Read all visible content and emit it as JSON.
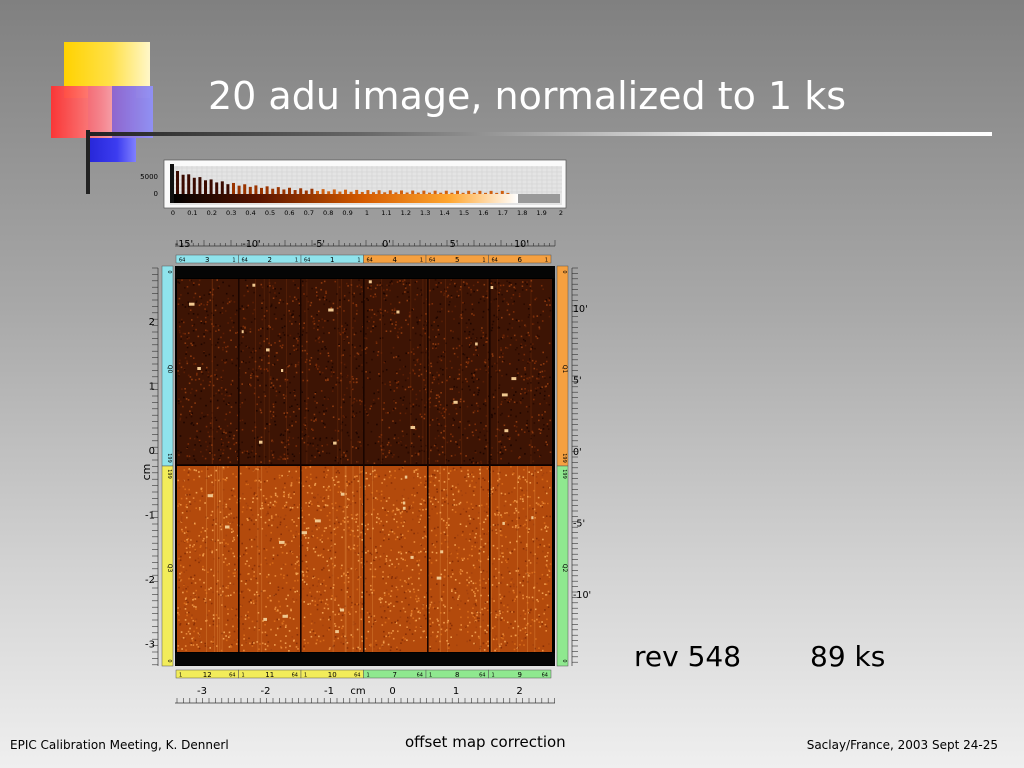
{
  "slide": {
    "title": "20 adu image, normalized to 1 ks",
    "rev_label": "rev 548",
    "exposure_label": "89 ks",
    "footer_left": "EPIC Calibration Meeting, K. Dennerl",
    "footer_center": "offset map correction",
    "footer_right": "Saclay/France, 2003 Sept 24-25"
  },
  "histogram": {
    "y_ticks": [
      "5000",
      "0"
    ],
    "x_ticks": [
      "0",
      "0.1",
      "0.2",
      "0.3",
      "0.4",
      "0.5",
      "0.6",
      "0.7",
      "0.8",
      "0.9",
      "1",
      "1.1",
      "1.2",
      "1.3",
      "1.4",
      "1.5",
      "1.6",
      "1.7",
      "1.8",
      "1.9",
      "2"
    ]
  },
  "image_panel": {
    "top_angle_ticks": [
      "-15'",
      "-10'",
      "-5'",
      "0'",
      "5'",
      "10'"
    ],
    "bottom_cm_ticks": [
      "-3",
      "-2",
      "-1",
      "0",
      "1",
      "2"
    ],
    "bottom_cm_label": "cm",
    "left_cm_ticks": [
      "2",
      "1",
      "0",
      "-1",
      "-2",
      "-3"
    ],
    "left_cm_label": "cm",
    "right_angle_ticks": [
      "10'",
      "5'",
      "0'",
      "-5'",
      "-10'"
    ],
    "top_ccds": [
      {
        "label": "3",
        "left": "64",
        "right": "1",
        "color": "#8fe3ec"
      },
      {
        "label": "2",
        "left": "64",
        "right": "1",
        "color": "#8fe3ec"
      },
      {
        "label": "1",
        "left": "64",
        "right": "1",
        "color": "#8fe3ec"
      },
      {
        "label": "4",
        "left": "64",
        "right": "1",
        "color": "#f5a040"
      },
      {
        "label": "5",
        "left": "64",
        "right": "1",
        "color": "#f5a040"
      },
      {
        "label": "6",
        "left": "64",
        "right": "1",
        "color": "#f5a040"
      }
    ],
    "bottom_ccds": [
      {
        "label": "12",
        "left": "1",
        "right": "64",
        "color": "#f2ec5a"
      },
      {
        "label": "11",
        "left": "1",
        "right": "64",
        "color": "#f2ec5a"
      },
      {
        "label": "10",
        "left": "1",
        "right": "64",
        "color": "#f2ec5a"
      },
      {
        "label": "7",
        "left": "1",
        "right": "64",
        "color": "#8fe88f"
      },
      {
        "label": "8",
        "left": "1",
        "right": "64",
        "color": "#8fe88f"
      },
      {
        "label": "9",
        "left": "1",
        "right": "64",
        "color": "#8fe88f"
      }
    ],
    "left_quadrants": [
      "Q0",
      "Q3"
    ],
    "right_quadrants": [
      "Q1",
      "Q2"
    ],
    "left_edge_labels": [
      "0",
      "199",
      "199",
      "0"
    ],
    "right_edge_labels": [
      "0",
      "199",
      "199",
      "0"
    ]
  }
}
